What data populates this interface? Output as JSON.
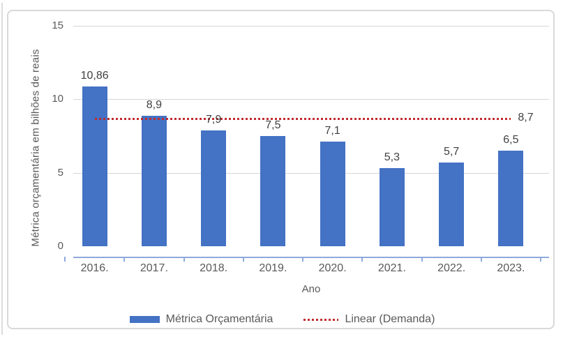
{
  "chart_data": {
    "type": "bar",
    "title": "",
    "categories": [
      "2016.",
      "2017.",
      "2018.",
      "2019.",
      "2020.",
      "2021.",
      "2022.",
      "2023."
    ],
    "series": [
      {
        "name": "Métrica Orçamentária",
        "type": "bar",
        "color": "#4472c4",
        "values": [
          10.86,
          8.9,
          7.9,
          7.5,
          7.1,
          5.3,
          5.7,
          6.5
        ],
        "value_labels": [
          "10,86",
          "8,9",
          "7,9",
          "7,5",
          "7,1",
          "5,3",
          "5,7",
          "6,5"
        ]
      },
      {
        "name": "Linear (Demanda)",
        "type": "trendline",
        "line_style": "dotted",
        "color": "#c02b2f",
        "value": 8.7,
        "value_label": "8,7"
      }
    ],
    "xlabel": "Ano",
    "ylabel": "Métrica orçamentária em bilhões de reais",
    "ylim": [
      0,
      15
    ],
    "yticks": [
      0,
      5,
      10,
      15
    ],
    "grid": true,
    "legend_position": "bottom",
    "colors": {
      "bar": "#4472c4",
      "trendline": "#c02b2f",
      "axis_line": "#8ea9db",
      "gridline": "#d6d6d6",
      "tick_text": "#595959",
      "data_label_text": "#404040",
      "frame_border": "#d9d9d9"
    }
  }
}
